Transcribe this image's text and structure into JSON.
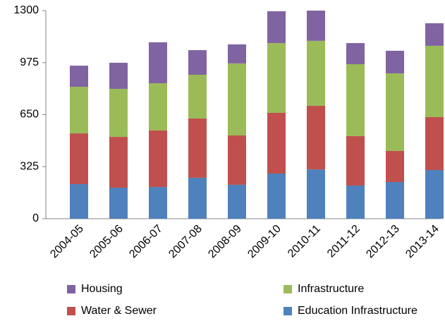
{
  "chart_data": {
    "type": "stacked_bar",
    "categories": [
      "2004-05",
      "2005-06",
      "2006-07",
      "2007-08",
      "2008-09",
      "2009-10",
      "2010-11",
      "2011-12",
      "2012-13",
      "2013-14"
    ],
    "series": [
      {
        "name": "Education Infrastructure",
        "color": "#4f81bd",
        "values": [
          216,
          194,
          198,
          256,
          212,
          282,
          308,
          207,
          229,
          304
        ]
      },
      {
        "name": "Water & Sewer",
        "color": "#c0504d",
        "values": [
          317,
          317,
          353,
          370,
          308,
          379,
          397,
          309,
          194,
          331
        ]
      },
      {
        "name": "Infrastructure",
        "color": "#9bbb59",
        "values": [
          291,
          300,
          295,
          273,
          450,
          436,
          406,
          449,
          485,
          445
        ]
      },
      {
        "name": "Housing",
        "color": "#8064a2",
        "values": [
          132,
          163,
          256,
          154,
          119,
          199,
          189,
          132,
          141,
          141
        ]
      }
    ],
    "ylim": [
      0,
      1300
    ],
    "yticks": [
      0,
      325,
      650,
      975,
      1300
    ],
    "grid": false
  }
}
